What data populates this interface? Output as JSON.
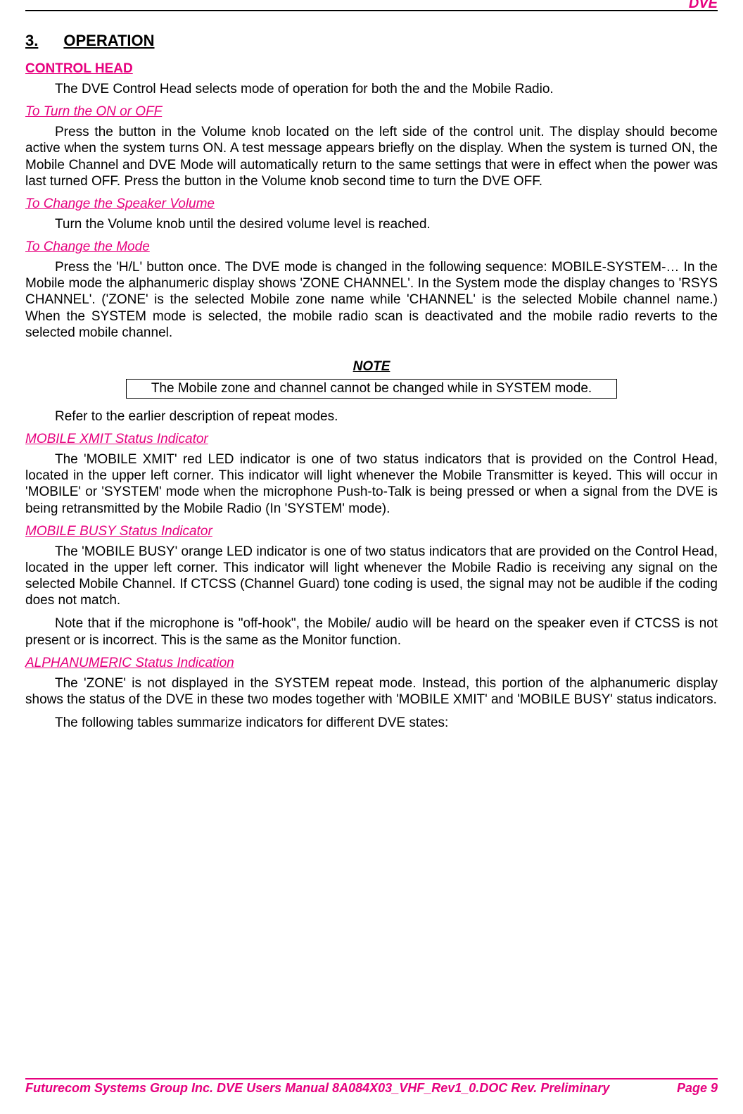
{
  "header": {
    "right": "DVE"
  },
  "section": {
    "num": "3.",
    "title": "OPERATION"
  },
  "h_control_head": "CONTROL HEAD",
  "p_control_head": "The DVE Control Head selects mode of operation for both the  and the Mobile Radio.",
  "h_turn": "To Turn the  ON or OFF",
  "p_turn": "Press the button in the Volume knob located on the left side of the control unit. The display should become active when the system turns ON. A test message appears briefly on the display. When the system is turned ON, the Mobile Channel and DVE Mode will automatically return to the same settings that were in effect when the power was last turned OFF. Press the button in the Volume knob second time to turn the DVE OFF.",
  "h_vol": "To Change the Speaker Volume",
  "p_vol": "Turn the Volume knob until the desired volume level is reached.",
  "h_mode": "To Change the  Mode",
  "p_mode": "Press the 'H/L' button once. The DVE mode is changed in the following sequence: MOBILE-SYSTEM-… In the Mobile mode the alphanumeric display shows 'ZONE CHANNEL'. In the System mode the display changes to 'RSYS CHANNEL'. ('ZONE' is the selected Mobile zone name while 'CHANNEL' is the selected Mobile channel name.) When the SYSTEM mode is selected, the mobile radio scan is deactivated and the mobile radio reverts to the selected mobile channel.",
  "note_label": "NOTE",
  "note_text": "The Mobile zone and channel cannot be changed while in SYSTEM mode.",
  "p_refer": "Refer to the earlier description of repeat modes.",
  "h_xmit": "MOBILE XMIT Status Indicator",
  "p_xmit": "The 'MOBILE XMIT' red LED indicator is one of two status indicators that is provided on the Control Head, located in the upper left corner. This indicator will light whenever the Mobile Transmitter is keyed. This will occur in 'MOBILE' or 'SYSTEM' mode when the microphone Push-to-Talk is being pressed or when a signal from the DVE is being retransmitted by the Mobile Radio (In 'SYSTEM' mode).",
  "h_busy": "MOBILE BUSY Status Indicator",
  "p_busy1": "The 'MOBILE BUSY' orange LED indicator is one of two status indicators that are provided on the Control Head, located in the upper left corner. This indicator will light whenever the Mobile Radio is receiving any signal on the selected Mobile Channel. If CTCSS (Channel Guard) tone coding is used, the signal may not be audible if the coding does not match.",
  "p_busy2": "Note that if the microphone is \"off-hook\", the Mobile/ audio will be heard on the speaker even if CTCSS is not present or is incorrect. This is the same as the Monitor function.",
  "h_alpha": "ALPHANUMERIC Status Indication",
  "p_alpha1": "The 'ZONE' is not displayed in the SYSTEM repeat mode. Instead, this portion of the alphanumeric display shows the status of the DVE in these two modes together with 'MOBILE XMIT' and 'MOBILE BUSY' status indicators.",
  "p_alpha2": "The following tables summarize indicators for different DVE states:",
  "footer": {
    "left": "Futurecom Systems Group Inc.  DVE Users Manual 8A084X03_VHF_Rev1_0.DOC Rev. Preliminary",
    "right": "Page 9"
  }
}
